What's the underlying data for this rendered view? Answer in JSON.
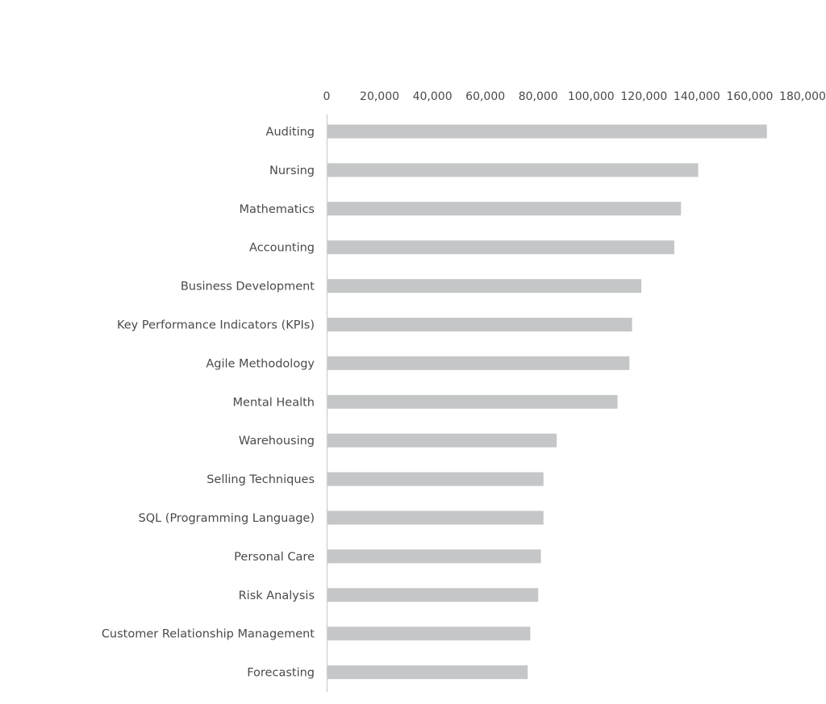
{
  "chart_data": {
    "type": "bar",
    "orientation": "horizontal",
    "title": "",
    "xlabel": "",
    "ylabel": "",
    "axis_position": "top",
    "xlim": [
      0,
      180000
    ],
    "ticks": [
      "0",
      "20,000",
      "40,000",
      "60,000",
      "80,000",
      "100,000",
      "120,000",
      "140,000",
      "160,000",
      "180,000"
    ],
    "tick_values": [
      0,
      20000,
      40000,
      60000,
      80000,
      100000,
      120000,
      140000,
      160000,
      180000
    ],
    "grid": false,
    "legend": "none",
    "bar_color": "#c4c6c8",
    "axis_color": "#d4d4d4",
    "categories": [
      "Auditing",
      "Nursing",
      "Mathematics",
      "Accounting",
      "Business Development",
      "Key Performance Indicators (KPIs)",
      "Agile Methodology",
      "Mental Health",
      "Warehousing",
      "Selling Techniques",
      "SQL (Programming Language)",
      "Personal Care",
      "Risk Analysis",
      "Customer Relationship Management",
      "Forecasting"
    ],
    "values": [
      166500,
      140500,
      134000,
      131500,
      119000,
      115500,
      114500,
      110000,
      87000,
      82000,
      82000,
      81000,
      80000,
      77000,
      76000
    ]
  }
}
